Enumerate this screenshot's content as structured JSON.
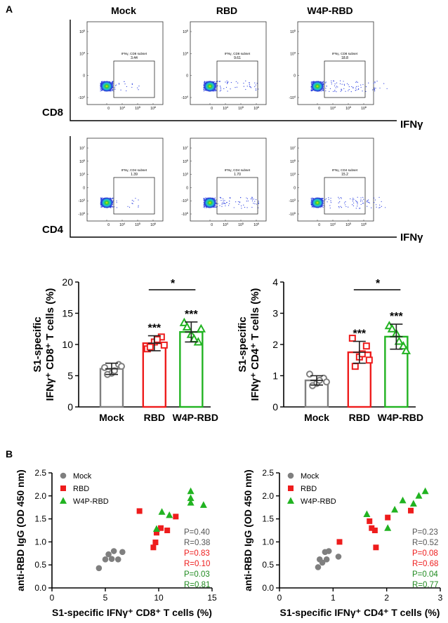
{
  "panel_labels": {
    "a": "A",
    "b": "B"
  },
  "flow": {
    "columns": [
      "Mock",
      "RBD",
      "W4P-RBD"
    ],
    "rows": [
      {
        "marker": "CD8",
        "x_label": "IFNγ",
        "gate_label": "IFNγ, CD8 subset",
        "values": [
          "3.44",
          "9.61",
          "18.8"
        ]
      },
      {
        "marker": "CD4",
        "x_label": "IFNγ",
        "gate_label": "IFNγ, CD4 subset",
        "values": [
          "1.39",
          "1.70",
          "15.2"
        ]
      }
    ],
    "y_ticks": [
      "10^5",
      "10^4",
      "0",
      "-10^4"
    ],
    "y_ticks_cd4": [
      "10^7",
      "10^5",
      "10^3",
      "0",
      "-10^3",
      "-10^5"
    ],
    "x_ticks": [
      "0",
      "10^4",
      "10^5",
      "10^6"
    ]
  },
  "colors": {
    "mock": "#7f7f7f",
    "rbd": "#ee1c1c",
    "w4p": "#21b321",
    "dark": "#222222"
  },
  "chart_data": [
    {
      "id": "bar_cd8",
      "type": "bar",
      "categories": [
        "Mock",
        "RBD",
        "W4P-RBD"
      ],
      "values": [
        6.1,
        10.2,
        12.0
      ],
      "errors": [
        0.9,
        1.2,
        1.6
      ],
      "points": [
        [
          6.3,
          5.4,
          6.8,
          5.2,
          5.8,
          6.5
        ],
        [
          9.3,
          10.4,
          11.2,
          9.6,
          10.8,
          9.9
        ],
        [
          13.5,
          11.6,
          10.4,
          12.8,
          10.9,
          12.5
        ]
      ],
      "sig": [
        "",
        "***",
        "***"
      ],
      "bracket": {
        "from": "RBD",
        "to": "W4P-RBD",
        "label": "*"
      },
      "ylabel_line1": "S1-specific",
      "ylabel_line2": "IFNγ⁺ CD8⁺ T cells (%)",
      "ylim": [
        0,
        20
      ],
      "yticks": [
        0,
        5,
        10,
        15,
        20
      ]
    },
    {
      "id": "bar_cd4",
      "type": "bar",
      "categories": [
        "Mock",
        "RBD",
        "W4P-RBD"
      ],
      "values": [
        0.85,
        1.75,
        2.25
      ],
      "errors": [
        0.15,
        0.35,
        0.4
      ],
      "points": [
        [
          1.05,
          0.75,
          0.92,
          0.68,
          0.85,
          0.8
        ],
        [
          2.2,
          1.6,
          1.95,
          1.3,
          1.7,
          1.5
        ],
        [
          2.6,
          2.35,
          1.95,
          2.5,
          2.1,
          1.8
        ]
      ],
      "sig": [
        "",
        "***",
        "***"
      ],
      "bracket": {
        "from": "RBD",
        "to": "W4P-RBD",
        "label": "*"
      },
      "ylabel_line1": "S1-specific",
      "ylabel_line2": "IFNγ⁺ CD4⁺ T cells (%)",
      "ylim": [
        0,
        4
      ],
      "yticks": [
        0,
        1,
        2,
        3,
        4
      ]
    },
    {
      "id": "scatter_cd8",
      "type": "scatter",
      "xlabel": "S1-specific IFNγ⁺ CD8⁺ T cells (%)",
      "ylabel": "anti-RBD IgG (OD 450 nm)",
      "xlim": [
        0,
        15
      ],
      "ylim": [
        0,
        2.5
      ],
      "xticks": [
        0,
        5,
        10,
        15
      ],
      "yticks": [
        0.0,
        0.5,
        1.0,
        1.5,
        2.0,
        2.5
      ],
      "series": [
        {
          "name": "Mock",
          "marker": "circle",
          "color": "#7f7f7f",
          "points": [
            [
              4.4,
              0.43
            ],
            [
              5.0,
              0.62
            ],
            [
              5.3,
              0.73
            ],
            [
              5.6,
              0.63
            ],
            [
              5.8,
              0.8
            ],
            [
              6.2,
              0.62
            ],
            [
              6.6,
              0.78
            ]
          ]
        },
        {
          "name": "RBD",
          "marker": "square",
          "color": "#ee1c1c",
          "points": [
            [
              8.2,
              1.67
            ],
            [
              9.5,
              0.88
            ],
            [
              9.7,
              0.99
            ],
            [
              9.8,
              1.2
            ],
            [
              10.2,
              1.3
            ],
            [
              10.8,
              1.25
            ],
            [
              11.6,
              1.55
            ]
          ]
        },
        {
          "name": "W4P-RBD",
          "marker": "triangle",
          "color": "#21b321",
          "points": [
            [
              9.8,
              1.28
            ],
            [
              10.3,
              1.65
            ],
            [
              11.0,
              1.58
            ],
            [
              13.0,
              2.1
            ],
            [
              13.0,
              1.95
            ],
            [
              13.0,
              1.85
            ],
            [
              14.2,
              1.8
            ]
          ]
        }
      ],
      "stats": [
        {
          "text": "P=0.40",
          "color": "#555555"
        },
        {
          "text": "R=0.38",
          "color": "#555555"
        },
        {
          "text": "P=0.83",
          "color": "#ee1c1c"
        },
        {
          "text": "R=0.10",
          "color": "#ee1c1c"
        },
        {
          "text": "P=0.03",
          "color": "#1f8a1f"
        },
        {
          "text": "R=0.81",
          "color": "#1f8a1f"
        }
      ]
    },
    {
      "id": "scatter_cd4",
      "type": "scatter",
      "xlabel": "S1-specific IFNγ⁺ CD4⁺ T cells (%)",
      "ylabel": "anti-RBD IgG (OD 450 nm)",
      "xlim": [
        0,
        3
      ],
      "ylim": [
        0,
        2.5
      ],
      "xticks": [
        0,
        1,
        2,
        3
      ],
      "yticks": [
        0.0,
        0.5,
        1.0,
        1.5,
        2.0,
        2.5
      ],
      "series": [
        {
          "name": "Mock",
          "marker": "circle",
          "color": "#7f7f7f",
          "points": [
            [
              0.72,
              0.45
            ],
            [
              0.75,
              0.62
            ],
            [
              0.8,
              0.55
            ],
            [
              0.85,
              0.78
            ],
            [
              0.88,
              0.62
            ],
            [
              0.92,
              0.8
            ],
            [
              1.1,
              0.68
            ]
          ]
        },
        {
          "name": "RBD",
          "marker": "square",
          "color": "#ee1c1c",
          "points": [
            [
              1.12,
              1.0
            ],
            [
              1.68,
              1.45
            ],
            [
              1.72,
              1.3
            ],
            [
              1.78,
              1.25
            ],
            [
              1.8,
              0.88
            ],
            [
              2.02,
              1.53
            ],
            [
              2.45,
              1.68
            ]
          ]
        },
        {
          "name": "W4P-RBD",
          "marker": "triangle",
          "color": "#21b321",
          "points": [
            [
              1.63,
              1.6
            ],
            [
              2.02,
              1.3
            ],
            [
              2.15,
              1.7
            ],
            [
              2.3,
              1.9
            ],
            [
              2.5,
              1.83
            ],
            [
              2.6,
              2.0
            ],
            [
              2.72,
              2.1
            ]
          ]
        }
      ],
      "stats": [
        {
          "text": "P=0.23",
          "color": "#555555"
        },
        {
          "text": "R=0.52",
          "color": "#555555"
        },
        {
          "text": "P=0.08",
          "color": "#ee1c1c"
        },
        {
          "text": "R=0.68",
          "color": "#ee1c1c"
        },
        {
          "text": "P=0.04",
          "color": "#1f8a1f"
        },
        {
          "text": "R=0.77",
          "color": "#1f8a1f"
        }
      ]
    }
  ]
}
